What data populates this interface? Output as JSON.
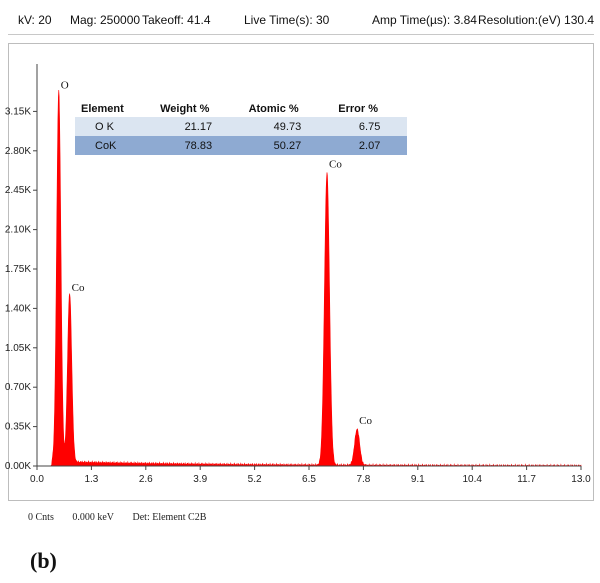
{
  "header": {
    "kv": "kV: 20",
    "mag": "Mag: 250000",
    "takeoff": "Takeoff: 41.4",
    "live_time": "Live Time(s): 30",
    "amp_time": "Amp Time(µs): 3.84",
    "resolution": "Resolution:(eV) 130.4"
  },
  "table": {
    "headers": [
      "Element",
      "Weight %",
      "Atomic %",
      "Error %"
    ],
    "rows": [
      [
        "O K",
        "21.17",
        "49.73",
        "6.75"
      ],
      [
        "CoK",
        "78.83",
        "50.27",
        "2.07"
      ]
    ]
  },
  "footer": {
    "counts": "0 Cnts",
    "kev": "0.000 keV",
    "detector": "Det: Element C2B"
  },
  "panel_label": "(b)",
  "chart_data": {
    "type": "area",
    "x_ticks": [
      "0.0",
      "1.3",
      "2.6",
      "3.9",
      "5.2",
      "6.5",
      "7.8",
      "9.1",
      "10.4",
      "11.7",
      "13.0"
    ],
    "y_ticks": [
      "0.00K",
      "0.35K",
      "0.70K",
      "1.05K",
      "1.40K",
      "1.75K",
      "2.10K",
      "2.45K",
      "2.80K",
      "3.15K"
    ],
    "xlim": [
      0,
      13.0
    ],
    "ylim": [
      0,
      3.5
    ],
    "color": "#ff0000",
    "peaks": [
      {
        "label": "O",
        "energy": 0.52,
        "height": 3.3,
        "width": 0.05
      },
      {
        "label": "Co",
        "energy": 0.78,
        "height": 1.5,
        "width": 0.05
      },
      {
        "label": "Co",
        "energy": 6.93,
        "height": 2.6,
        "width": 0.06
      },
      {
        "label": "Co",
        "energy": 7.65,
        "height": 0.32,
        "width": 0.06
      }
    ],
    "background_level": 0.04
  }
}
